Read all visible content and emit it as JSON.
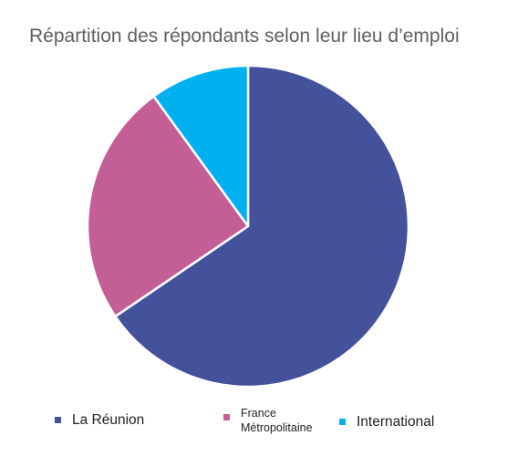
{
  "chart_data": {
    "type": "pie",
    "title": "Répartition des répondants selon leur lieu d’emploi",
    "categories": [
      "La Réunion",
      "France Métropolitaine",
      "International"
    ],
    "values": [
      65.5,
      24.5,
      10.0
    ],
    "colors": [
      "#44519b",
      "#c45f96",
      "#00b0ef"
    ],
    "legend_position": "bottom"
  }
}
